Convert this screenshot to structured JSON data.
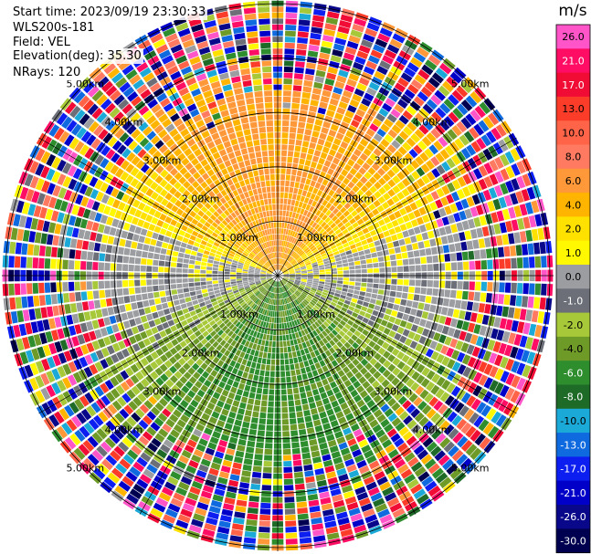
{
  "header": {
    "start_time": "Start time: 2023/09/19 23:30:33",
    "site": "WLS200s-181",
    "field": "Field: VEL",
    "elevation": "Elevation(deg): 35.30",
    "nrays": "NRays: 120"
  },
  "chart_data": {
    "type": "heatmap",
    "subtype": "polar-ppi",
    "field": "VEL",
    "unit": "m/s",
    "n_rays": 120,
    "range_rings_km": [
      1.0,
      2.0,
      3.0,
      4.0,
      5.0
    ],
    "ring_labels": [
      "1.00km",
      "2.00km",
      "3.00km",
      "4.00km",
      "5.00km"
    ],
    "colorbar": {
      "unit_label": "m/s",
      "ticks": [
        "26.0",
        "21.0",
        "17.0",
        "13.0",
        "10.0",
        "8.0",
        "6.0",
        "4.0",
        "2.0",
        "1.0",
        "0.0",
        "-1.0",
        "-2.0",
        "-4.0",
        "-6.0",
        "-8.0",
        "-10.0",
        "-13.0",
        "-17.0",
        "-21.0",
        "-26.0",
        "-30.0"
      ],
      "colors": [
        "#ff55c8",
        "#ff0d64",
        "#f00c34",
        "#fa3c28",
        "#ff6448",
        "#ff7a60",
        "#ff9838",
        "#ffb400",
        "#ffe100",
        "#fff800",
        "#9b9da0",
        "#6c6f78",
        "#a7c838",
        "#6e9a28",
        "#2e8e2e",
        "#1e6b28",
        "#1ba9d8",
        "#0f6ae0",
        "#0c1ef0",
        "#0000c8",
        "#09088a",
        "#000050"
      ]
    },
    "pattern": {
      "near_field_north": "positive (2 to 8 m/s, yellow/orange)",
      "near_field_south": "negative (-2 to -8 m/s, greens)",
      "east_west": "near zero (grey)",
      "far_field": "noisy / all colors"
    }
  }
}
